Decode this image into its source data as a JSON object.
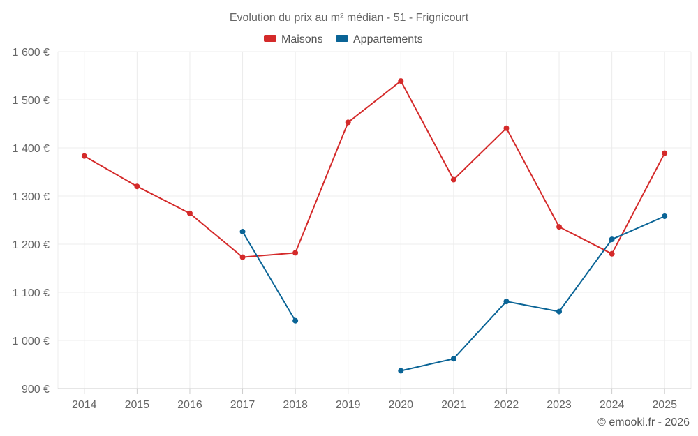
{
  "chart_data": {
    "type": "line",
    "title": "Evolution du prix au m² médian - 51 - Frignicourt",
    "categories": [
      "2014",
      "2015",
      "2016",
      "2017",
      "2018",
      "2019",
      "2020",
      "2021",
      "2022",
      "2023",
      "2024",
      "2025"
    ],
    "series": [
      {
        "name": "Maisons",
        "color": "#d42a2a",
        "values": [
          1383,
          1320,
          1264,
          1173,
          1182,
          1453,
          1539,
          1334,
          1441,
          1236,
          1180,
          1389
        ]
      },
      {
        "name": "Appartements",
        "color": "#0a6496",
        "values": [
          null,
          null,
          null,
          1226,
          1041,
          null,
          937,
          962,
          1081,
          1060,
          1210,
          1258
        ]
      }
    ],
    "ylim": [
      900,
      1600
    ],
    "yticks": [
      900,
      1000,
      1100,
      1200,
      1300,
      1400,
      1500,
      1600
    ],
    "ytick_labels": [
      "900 €",
      "1 000 €",
      "1 100 €",
      "1 200 €",
      "1 300 €",
      "1 400 €",
      "1 500 €",
      "1 600 €"
    ],
    "xlabel": "",
    "ylabel": "",
    "grid": true,
    "legend_position": "top-center",
    "credit": "© emooki.fr - 2026"
  }
}
